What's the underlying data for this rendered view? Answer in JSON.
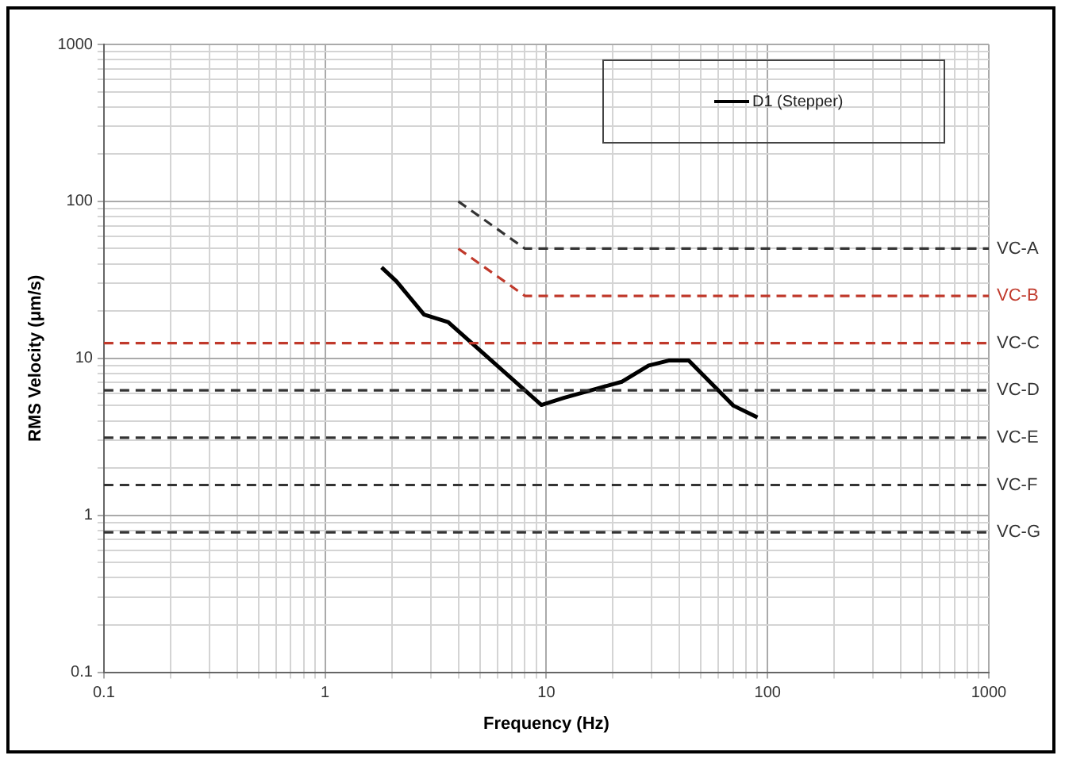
{
  "chart_data": {
    "type": "line",
    "xlabel": "Frequency (Hz)",
    "ylabel": "RMS Velocity (μm/s)",
    "log": "xy",
    "grid": true,
    "legend": "top right",
    "marker": "none",
    "xlim": [
      0.1,
      1000
    ],
    "ylim": [
      0.1,
      1000
    ],
    "xticks": [
      0.1,
      {
        "value": 0.2,
        "label": null
      },
      {
        "value": 0.3,
        "label": null
      },
      {
        "value": 0.4,
        "label": null
      },
      {
        "value": 0.5,
        "label": null
      },
      {
        "value": 0.6,
        "label": null
      },
      {
        "value": 0.7,
        "label": null
      },
      {
        "value": 0.8,
        "label": null
      },
      {
        "value": 0.9,
        "label": null
      },
      1,
      {
        "value": 2,
        "label": null
      },
      {
        "value": 3,
        "label": null
      },
      {
        "value": 4,
        "label": null
      },
      {
        "value": 5,
        "label": null
      },
      {
        "value": 6,
        "label": null
      },
      {
        "value": 7,
        "label": null
      },
      {
        "value": 8,
        "label": null
      },
      {
        "value": 9,
        "label": null
      },
      10,
      {
        "value": 20,
        "label": null
      },
      {
        "value": 30,
        "label": null
      },
      {
        "value": 40,
        "label": null
      },
      {
        "value": 50,
        "label": null
      },
      {
        "value": 60,
        "label": null
      },
      {
        "value": 70,
        "label": null
      },
      {
        "value": 80,
        "label": null
      },
      {
        "value": 90,
        "label": null
      },
      100,
      {
        "value": 200,
        "label": null
      },
      {
        "value": 300,
        "label": null
      },
      {
        "value": 400,
        "label": null
      },
      {
        "value": 500,
        "label": null
      },
      {
        "value": 600,
        "label": null
      },
      {
        "value": 700,
        "label": null
      },
      {
        "value": 800,
        "label": null
      },
      {
        "value": 900,
        "label": null
      },
      1000
    ],
    "yticks": [
      0.1,
      {
        "value": 0.2,
        "label": null
      },
      {
        "value": 0.3,
        "label": null
      },
      {
        "value": 0.4,
        "label": null
      },
      {
        "value": 0.5,
        "label": null
      },
      {
        "value": 0.6,
        "label": null
      },
      {
        "value": 0.7,
        "label": null
      },
      {
        "value": 0.8,
        "label": null
      },
      {
        "value": 0.9,
        "label": null
      },
      1,
      {
        "value": 2,
        "label": null
      },
      {
        "value": 3,
        "label": null
      },
      {
        "value": 4,
        "label": null
      },
      {
        "value": 5,
        "label": null
      },
      {
        "value": 6,
        "label": null
      },
      {
        "value": 7,
        "label": null
      },
      {
        "value": 8,
        "label": null
      },
      {
        "value": 9,
        "label": null
      },
      10,
      {
        "value": 20,
        "label": null
      },
      {
        "value": 30,
        "label": null
      },
      {
        "value": 40,
        "label": null
      },
      {
        "value": 50,
        "label": null
      },
      {
        "value": 60,
        "label": null
      },
      {
        "value": 70,
        "label": null
      },
      {
        "value": 80,
        "label": null
      },
      {
        "value": 90,
        "label": null
      },
      100,
      {
        "value": 200,
        "label": null
      },
      {
        "value": 300,
        "label": null
      },
      {
        "value": 400,
        "label": null
      },
      {
        "value": 500,
        "label": null
      },
      {
        "value": 600,
        "label": null
      },
      {
        "value": 700,
        "label": null
      },
      {
        "value": 800,
        "label": null
      },
      {
        "value": 900,
        "label": null
      },
      1000
    ],
    "series": [
      {
        "name": "D1 (Stepper)",
        "color": "#000000",
        "line_style": "solid",
        "x": [
          1.8,
          2.1,
          2.8,
          3.6,
          9.5,
          12,
          17.5,
          22,
          29,
          36,
          44,
          70,
          90
        ],
        "values": [
          38,
          31,
          19,
          17,
          5.05,
          5.6,
          6.5,
          7.1,
          9.0,
          9.7,
          9.7,
          5.0,
          4.2
        ]
      },
      {
        "name": "VC-A",
        "color": "#333333",
        "line_style": "dashed",
        "x": [
          4,
          8,
          1000
        ],
        "values": [
          100,
          50,
          50
        ]
      },
      {
        "name": "VC-B",
        "color": "#c0392b",
        "line_style": "dashed",
        "x": [
          4,
          8,
          1000
        ],
        "values": [
          50,
          25,
          25
        ]
      }
    ],
    "ref_lines": [
      {
        "axis": "y",
        "value": 12.5,
        "label": "VC-C",
        "color": "#c0392b",
        "line_style": "dashed"
      },
      {
        "axis": "y",
        "value": 6.25,
        "label": "VC-D",
        "color": "#333333",
        "line_style": "dashed"
      },
      {
        "axis": "y",
        "value": 3.12,
        "label": "VC-E",
        "color": "#333333",
        "line_style": "dashed"
      },
      {
        "axis": "y",
        "value": 1.56,
        "label": "VC-F",
        "color": "#333333",
        "line_style": "dashed"
      },
      {
        "axis": "y",
        "value": 0.78,
        "label": "VC-G",
        "color": "#333333",
        "line_style": "dashed"
      }
    ]
  }
}
